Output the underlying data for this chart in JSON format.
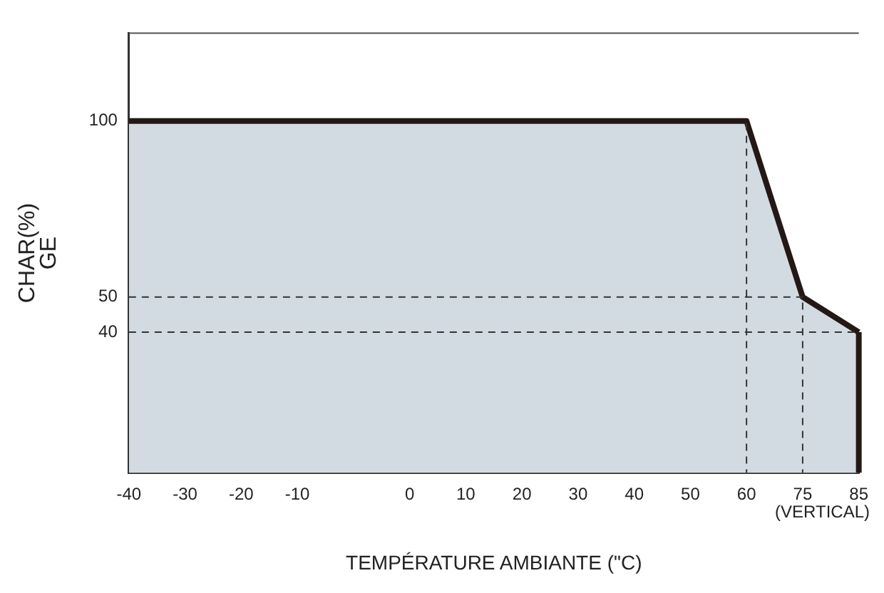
{
  "chart_data": {
    "type": "area",
    "xlabel": "TEMPÉRATURE AMBIANTE (\"C)",
    "ylabel": "CHAR(%)\nGE",
    "categories": [
      "-40",
      "-30",
      "-20",
      "-10",
      null,
      "0",
      "10",
      "20",
      "30",
      "40",
      "50",
      "60",
      "75",
      "85"
    ],
    "series": [
      {
        "color": "#d3dbe2",
        "values": [
          100,
          100,
          100,
          100,
          100,
          100,
          100,
          100,
          100,
          100,
          100,
          100,
          50,
          40
        ]
      }
    ],
    "ylim": [
      0,
      125
    ],
    "yticks": [
      40,
      50,
      100
    ],
    "ref_lines": [
      {
        "axis": "y",
        "value": 50,
        "color": "#333333",
        "line_style": "dashed"
      },
      {
        "axis": "y",
        "value": 40,
        "color": "#333333",
        "line_style": "dashed"
      },
      {
        "axis": "x",
        "value": "60",
        "color": "#333333",
        "line_style": "dashed"
      },
      {
        "axis": "x",
        "value": "75",
        "color": "#333333",
        "line_style": "dashed"
      },
      {
        "axis": "x",
        "value": "85",
        "label": "(VERTICAL)",
        "color": "#231815",
        "line_style": "solid"
      }
    ],
    "grid": false,
    "legend": false
  }
}
